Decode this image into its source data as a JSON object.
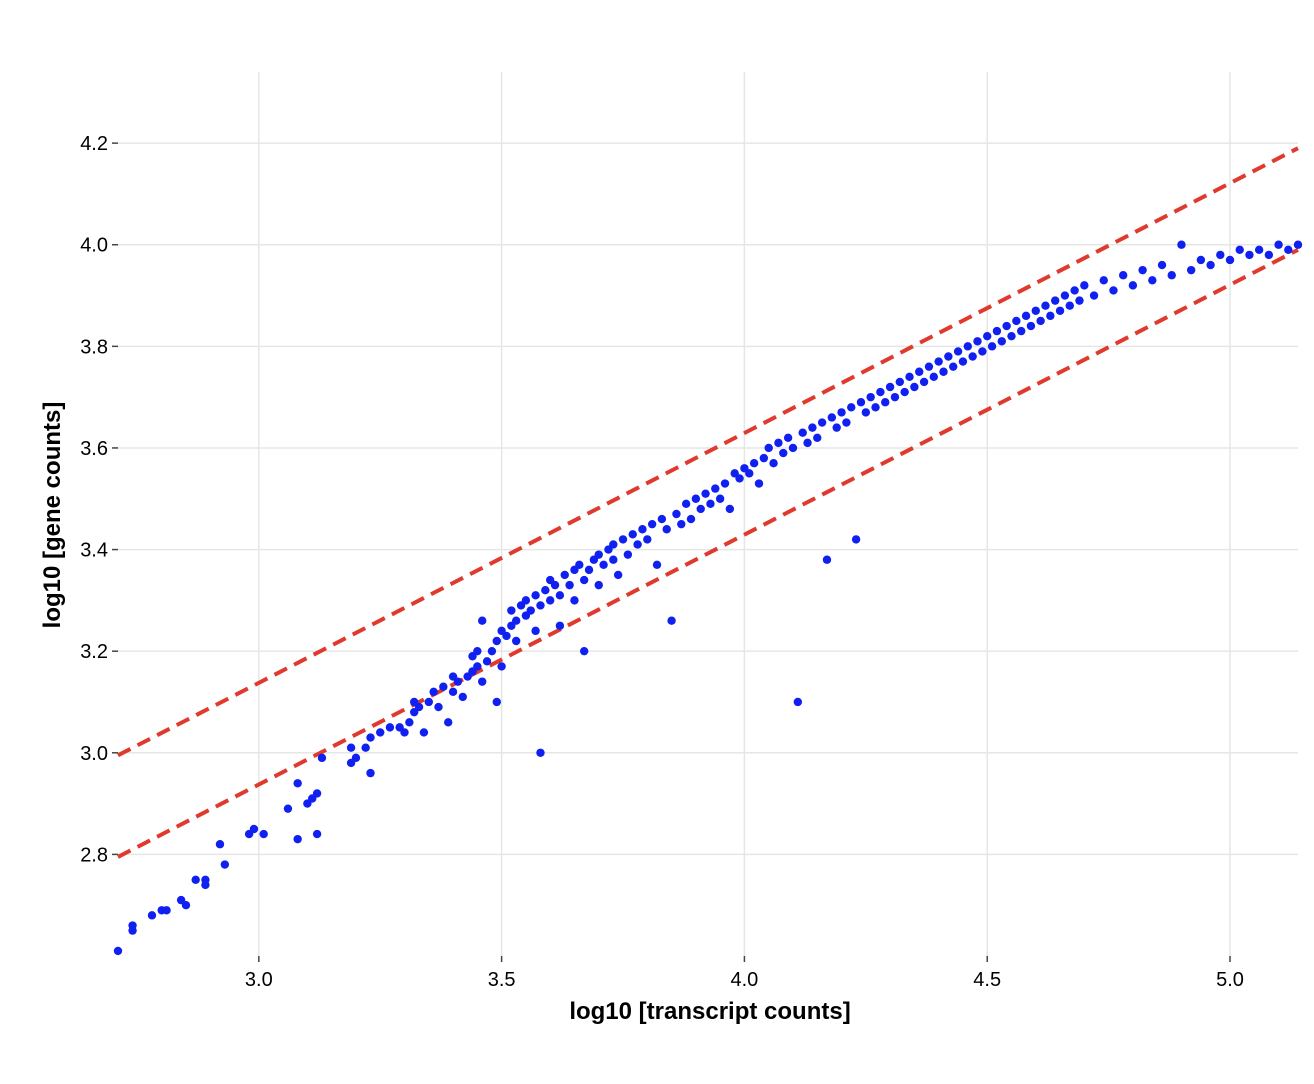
{
  "chart_data": {
    "type": "scatter",
    "title": "",
    "xlabel": "log10 [transcript counts]",
    "ylabel": "log10 [gene counts]",
    "xlim": [
      2.71,
      5.14
    ],
    "ylim": [
      2.6,
      4.34
    ],
    "x_ticks": [
      "3.0",
      "3.5",
      "4.0",
      "4.5",
      "5.0"
    ],
    "y_ticks": [
      "2.8",
      "3.0",
      "3.2",
      "3.4",
      "3.6",
      "3.8",
      "4.0",
      "4.2"
    ],
    "grid": true,
    "legend": "none",
    "point_color": "#1020f0",
    "threshold_color": "#e03a2e",
    "threshold_lines": [
      {
        "x1": 2.71,
        "y1": 2.995,
        "x2": 5.14,
        "y2": 4.19
      },
      {
        "x1": 2.71,
        "y1": 2.795,
        "x2": 5.14,
        "y2": 3.99
      }
    ],
    "series": [
      {
        "values": [
          [
            2.71,
            2.61
          ],
          [
            2.74,
            2.65
          ],
          [
            2.74,
            2.66
          ],
          [
            2.78,
            2.68
          ],
          [
            2.8,
            2.69
          ],
          [
            2.81,
            2.69
          ],
          [
            2.84,
            2.71
          ],
          [
            2.85,
            2.7
          ],
          [
            2.87,
            2.75
          ],
          [
            2.89,
            2.74
          ],
          [
            2.89,
            2.75
          ],
          [
            2.92,
            2.82
          ],
          [
            2.93,
            2.78
          ],
          [
            2.98,
            2.84
          ],
          [
            2.99,
            2.85
          ],
          [
            3.01,
            2.84
          ],
          [
            3.06,
            2.89
          ],
          [
            3.08,
            2.94
          ],
          [
            3.08,
            2.83
          ],
          [
            3.1,
            2.9
          ],
          [
            3.11,
            2.91
          ],
          [
            3.12,
            2.92
          ],
          [
            3.12,
            2.84
          ],
          [
            3.13,
            2.99
          ],
          [
            3.19,
            3.01
          ],
          [
            3.19,
            2.98
          ],
          [
            3.2,
            2.99
          ],
          [
            3.22,
            3.01
          ],
          [
            3.23,
            2.96
          ],
          [
            3.23,
            3.03
          ],
          [
            3.25,
            3.04
          ],
          [
            3.27,
            3.05
          ],
          [
            3.29,
            3.05
          ],
          [
            3.3,
            3.04
          ],
          [
            3.31,
            3.06
          ],
          [
            3.32,
            3.08
          ],
          [
            3.32,
            3.1
          ],
          [
            3.33,
            3.09
          ],
          [
            3.34,
            3.04
          ],
          [
            3.35,
            3.1
          ],
          [
            3.36,
            3.12
          ],
          [
            3.37,
            3.09
          ],
          [
            3.38,
            3.13
          ],
          [
            3.39,
            3.06
          ],
          [
            3.4,
            3.12
          ],
          [
            3.4,
            3.15
          ],
          [
            3.41,
            3.14
          ],
          [
            3.42,
            3.11
          ],
          [
            3.43,
            3.15
          ],
          [
            3.44,
            3.19
          ],
          [
            3.44,
            3.16
          ],
          [
            3.45,
            3.17
          ],
          [
            3.45,
            3.2
          ],
          [
            3.46,
            3.26
          ],
          [
            3.46,
            3.14
          ],
          [
            3.47,
            3.18
          ],
          [
            3.48,
            3.2
          ],
          [
            3.49,
            3.22
          ],
          [
            3.49,
            3.1
          ],
          [
            3.5,
            3.24
          ],
          [
            3.5,
            3.17
          ],
          [
            3.51,
            3.23
          ],
          [
            3.52,
            3.25
          ],
          [
            3.52,
            3.28
          ],
          [
            3.53,
            3.26
          ],
          [
            3.53,
            3.22
          ],
          [
            3.54,
            3.29
          ],
          [
            3.55,
            3.27
          ],
          [
            3.55,
            3.3
          ],
          [
            3.56,
            3.28
          ],
          [
            3.57,
            3.31
          ],
          [
            3.57,
            3.24
          ],
          [
            3.58,
            3.29
          ],
          [
            3.58,
            3.0
          ],
          [
            3.59,
            3.32
          ],
          [
            3.6,
            3.3
          ],
          [
            3.6,
            3.34
          ],
          [
            3.61,
            3.33
          ],
          [
            3.62,
            3.31
          ],
          [
            3.62,
            3.25
          ],
          [
            3.63,
            3.35
          ],
          [
            3.64,
            3.33
          ],
          [
            3.65,
            3.36
          ],
          [
            3.65,
            3.3
          ],
          [
            3.66,
            3.37
          ],
          [
            3.67,
            3.2
          ],
          [
            3.67,
            3.34
          ],
          [
            3.68,
            3.36
          ],
          [
            3.69,
            3.38
          ],
          [
            3.7,
            3.39
          ],
          [
            3.7,
            3.33
          ],
          [
            3.71,
            3.37
          ],
          [
            3.72,
            3.4
          ],
          [
            3.73,
            3.38
          ],
          [
            3.73,
            3.41
          ],
          [
            3.74,
            3.35
          ],
          [
            3.75,
            3.42
          ],
          [
            3.76,
            3.39
          ],
          [
            3.77,
            3.43
          ],
          [
            3.78,
            3.41
          ],
          [
            3.79,
            3.44
          ],
          [
            3.8,
            3.42
          ],
          [
            3.81,
            3.45
          ],
          [
            3.82,
            3.37
          ],
          [
            3.83,
            3.46
          ],
          [
            3.84,
            3.44
          ],
          [
            3.85,
            3.26
          ],
          [
            3.86,
            3.47
          ],
          [
            3.87,
            3.45
          ],
          [
            3.88,
            3.49
          ],
          [
            3.89,
            3.46
          ],
          [
            3.9,
            3.5
          ],
          [
            3.91,
            3.48
          ],
          [
            3.92,
            3.51
          ],
          [
            3.93,
            3.49
          ],
          [
            3.94,
            3.52
          ],
          [
            3.95,
            3.5
          ],
          [
            3.96,
            3.53
          ],
          [
            3.97,
            3.48
          ],
          [
            3.98,
            3.55
          ],
          [
            3.99,
            3.54
          ],
          [
            4.0,
            3.56
          ],
          [
            4.01,
            3.55
          ],
          [
            4.02,
            3.57
          ],
          [
            4.03,
            3.53
          ],
          [
            4.04,
            3.58
          ],
          [
            4.05,
            3.6
          ],
          [
            4.06,
            3.57
          ],
          [
            4.07,
            3.61
          ],
          [
            4.08,
            3.59
          ],
          [
            4.09,
            3.62
          ],
          [
            4.1,
            3.6
          ],
          [
            4.11,
            3.1
          ],
          [
            4.12,
            3.63
          ],
          [
            4.13,
            3.61
          ],
          [
            4.14,
            3.64
          ],
          [
            4.15,
            3.62
          ],
          [
            4.16,
            3.65
          ],
          [
            4.17,
            3.38
          ],
          [
            4.18,
            3.66
          ],
          [
            4.19,
            3.64
          ],
          [
            4.2,
            3.67
          ],
          [
            4.21,
            3.65
          ],
          [
            4.22,
            3.68
          ],
          [
            4.23,
            3.42
          ],
          [
            4.24,
            3.69
          ],
          [
            4.25,
            3.67
          ],
          [
            4.26,
            3.7
          ],
          [
            4.27,
            3.68
          ],
          [
            4.28,
            3.71
          ],
          [
            4.29,
            3.69
          ],
          [
            4.3,
            3.72
          ],
          [
            4.31,
            3.7
          ],
          [
            4.32,
            3.73
          ],
          [
            4.33,
            3.71
          ],
          [
            4.34,
            3.74
          ],
          [
            4.35,
            3.72
          ],
          [
            4.36,
            3.75
          ],
          [
            4.37,
            3.73
          ],
          [
            4.38,
            3.76
          ],
          [
            4.39,
            3.74
          ],
          [
            4.4,
            3.77
          ],
          [
            4.41,
            3.75
          ],
          [
            4.42,
            3.78
          ],
          [
            4.43,
            3.76
          ],
          [
            4.44,
            3.79
          ],
          [
            4.45,
            3.77
          ],
          [
            4.46,
            3.8
          ],
          [
            4.47,
            3.78
          ],
          [
            4.48,
            3.81
          ],
          [
            4.49,
            3.79
          ],
          [
            4.5,
            3.82
          ],
          [
            4.51,
            3.8
          ],
          [
            4.52,
            3.83
          ],
          [
            4.53,
            3.81
          ],
          [
            4.54,
            3.84
          ],
          [
            4.55,
            3.82
          ],
          [
            4.56,
            3.85
          ],
          [
            4.57,
            3.83
          ],
          [
            4.58,
            3.86
          ],
          [
            4.59,
            3.84
          ],
          [
            4.6,
            3.87
          ],
          [
            4.61,
            3.85
          ],
          [
            4.62,
            3.88
          ],
          [
            4.63,
            3.86
          ],
          [
            4.64,
            3.89
          ],
          [
            4.65,
            3.87
          ],
          [
            4.66,
            3.9
          ],
          [
            4.67,
            3.88
          ],
          [
            4.68,
            3.91
          ],
          [
            4.69,
            3.89
          ],
          [
            4.7,
            3.92
          ],
          [
            4.72,
            3.9
          ],
          [
            4.74,
            3.93
          ],
          [
            4.76,
            3.91
          ],
          [
            4.78,
            3.94
          ],
          [
            4.8,
            3.92
          ],
          [
            4.82,
            3.95
          ],
          [
            4.84,
            3.93
          ],
          [
            4.86,
            3.96
          ],
          [
            4.88,
            3.94
          ],
          [
            4.9,
            4.0
          ],
          [
            4.92,
            3.95
          ],
          [
            4.94,
            3.97
          ],
          [
            4.96,
            3.96
          ],
          [
            4.98,
            3.98
          ],
          [
            5.0,
            3.97
          ],
          [
            5.02,
            3.99
          ],
          [
            5.04,
            3.98
          ],
          [
            5.06,
            3.99
          ],
          [
            5.08,
            3.98
          ],
          [
            5.1,
            4.0
          ],
          [
            5.12,
            3.99
          ],
          [
            5.14,
            4.0
          ]
        ]
      }
    ]
  }
}
